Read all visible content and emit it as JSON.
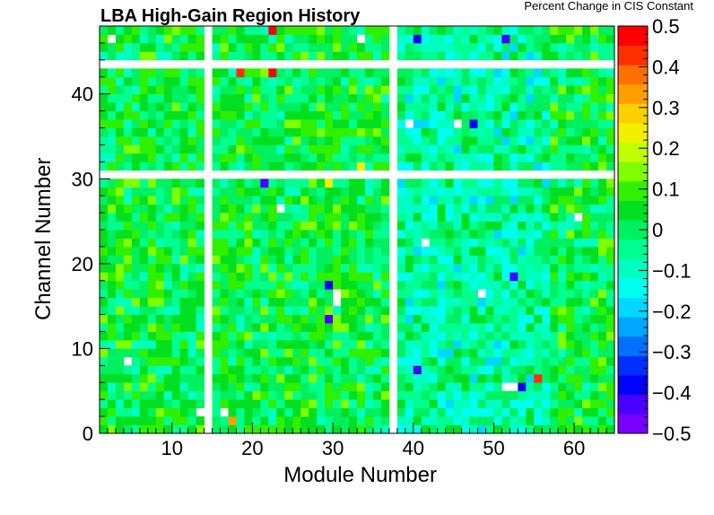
{
  "chart_data": {
    "type": "heatmap",
    "title": "LBA High-Gain Region History",
    "xlabel": "Module Number",
    "ylabel": "Channel Number",
    "zlabel": "Percent Change in CIS Constant",
    "xlim": [
      1,
      65
    ],
    "ylim": [
      0,
      48
    ],
    "zlim": [
      -0.5,
      0.5
    ],
    "x_ticks": [
      "10",
      "20",
      "30",
      "40",
      "50",
      "60"
    ],
    "y_ticks": [
      "0",
      "10",
      "20",
      "30",
      "40"
    ],
    "z_ticks": [
      "−0.5",
      "−0.4",
      "−0.3",
      "−0.2",
      "−0.1",
      "0",
      "0.1",
      "0.2",
      "0.3",
      "0.4",
      "0.5"
    ],
    "palette": [
      "#7a00ff",
      "#4a00ff",
      "#0000ff",
      "#0030ff",
      "#0070ff",
      "#00a8ff",
      "#00d8ff",
      "#00ffee",
      "#00ffc0",
      "#00ff90",
      "#00f060",
      "#00e020",
      "#30f000",
      "#80ff00",
      "#c0ff00",
      "#f0f000",
      "#ffd000",
      "#ffa000",
      "#ff7000",
      "#ff3000",
      "#ff0000"
    ],
    "empty_columns": [
      14,
      37
    ],
    "empty_rows": [
      30,
      43
    ],
    "notable_cells": [
      {
        "module": 22,
        "channel": 47,
        "value": 0.5
      },
      {
        "module": 22,
        "channel": 42,
        "value": 0.48
      },
      {
        "module": 18,
        "channel": 42,
        "value": 0.42
      },
      {
        "module": 55,
        "channel": 6,
        "value": 0.45
      },
      {
        "module": 17,
        "channel": 1,
        "value": 0.32
      },
      {
        "module": 29,
        "channel": 29,
        "value": 0.25
      },
      {
        "module": 33,
        "channel": 31,
        "value": 0.22
      },
      {
        "module": 29,
        "channel": 17,
        "value": -0.4
      },
      {
        "module": 29,
        "channel": 13,
        "value": -0.42
      },
      {
        "module": 40,
        "channel": 7,
        "value": -0.42
      },
      {
        "module": 52,
        "channel": 18,
        "value": -0.45
      },
      {
        "module": 53,
        "channel": 5,
        "value": -0.4
      },
      {
        "module": 40,
        "channel": 46,
        "value": -0.38
      },
      {
        "module": 21,
        "channel": 29,
        "value": -0.45
      },
      {
        "module": 47,
        "channel": 36,
        "value": -0.38
      },
      {
        "module": 51,
        "channel": 46,
        "value": -0.42
      }
    ],
    "missing_cells": [
      {
        "module": 30,
        "channel": 16
      },
      {
        "module": 30,
        "channel": 15
      },
      {
        "module": 23,
        "channel": 26
      },
      {
        "module": 41,
        "channel": 22
      },
      {
        "module": 48,
        "channel": 16
      },
      {
        "module": 51,
        "channel": 5
      },
      {
        "module": 52,
        "channel": 5
      },
      {
        "module": 39,
        "channel": 36
      },
      {
        "module": 45,
        "channel": 36
      },
      {
        "module": 4,
        "channel": 8
      },
      {
        "module": 16,
        "channel": 2
      },
      {
        "module": 13,
        "channel": 2
      },
      {
        "module": 60,
        "channel": 25
      },
      {
        "module": 2,
        "channel": 46
      },
      {
        "module": 33,
        "channel": 46
      }
    ]
  }
}
